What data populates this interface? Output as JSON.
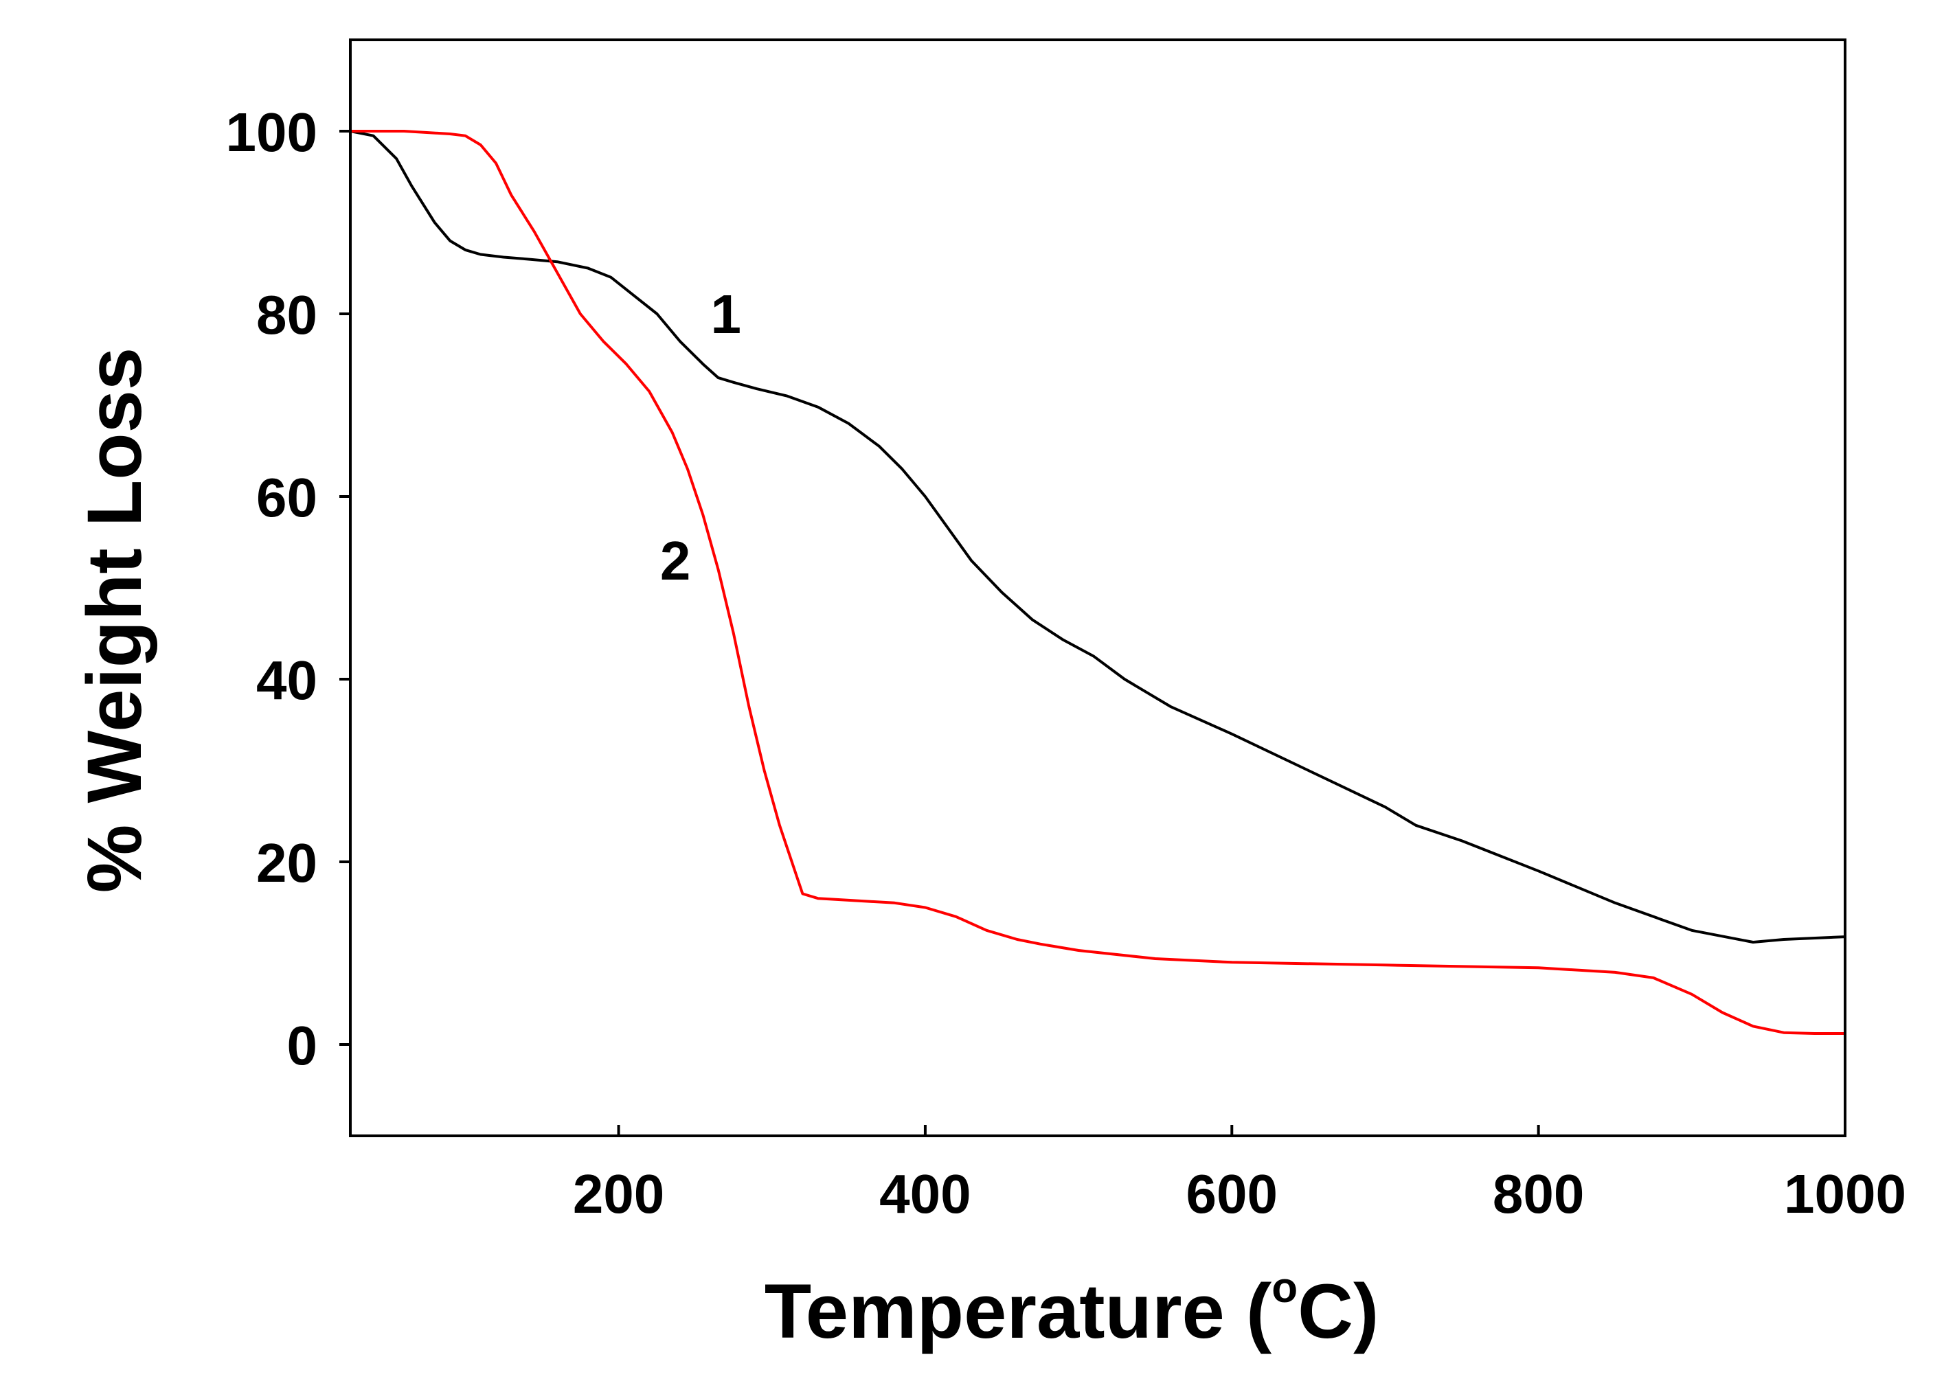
{
  "chart_data": {
    "type": "line",
    "title": "",
    "xlabel": "Temperature (",
    "xlabel_degree": "o",
    "xlabel_suffix": "C)",
    "ylabel": "% Weight Loss",
    "xlim": [
      25,
      1000
    ],
    "ylim": [
      -10,
      110
    ],
    "xticks": [
      200,
      400,
      600,
      800,
      1000
    ],
    "yticks": [
      0,
      20,
      40,
      60,
      80,
      100
    ],
    "grid": false,
    "legend": "none",
    "series": [
      {
        "name": "1",
        "color": "#000000",
        "x": [
          25,
          40,
          55,
          65,
          80,
          90,
          100,
          110,
          125,
          140,
          160,
          180,
          195,
          210,
          225,
          240,
          255,
          265,
          275,
          290,
          310,
          330,
          350,
          370,
          385,
          400,
          415,
          430,
          450,
          470,
          490,
          510,
          530,
          560,
          600,
          650,
          700,
          720,
          750,
          800,
          850,
          900,
          940,
          960,
          1000
        ],
        "y": [
          100,
          99.5,
          97,
          94,
          90,
          88,
          87,
          86.5,
          86.2,
          86,
          85.7,
          85,
          84,
          82,
          80,
          77,
          74.5,
          73,
          72.5,
          71.8,
          71,
          69.8,
          68,
          65.5,
          63,
          60,
          56.5,
          53,
          49.5,
          46.5,
          44.3,
          42.5,
          40,
          37,
          34,
          30,
          26,
          24,
          22.3,
          19,
          15.5,
          12.5,
          11.2,
          11.5,
          11.8
        ]
      },
      {
        "name": "2",
        "color": "#ff0000",
        "x": [
          25,
          60,
          90,
          100,
          110,
          120,
          130,
          145,
          160,
          175,
          190,
          205,
          220,
          235,
          245,
          255,
          265,
          275,
          285,
          295,
          305,
          315,
          320,
          330,
          350,
          380,
          400,
          420,
          440,
          460,
          475,
          500,
          550,
          600,
          700,
          800,
          850,
          875,
          900,
          920,
          940,
          960,
          980,
          1000
        ],
        "y": [
          100,
          100,
          99.7,
          99.5,
          98.5,
          96.5,
          93,
          89,
          84.5,
          80,
          77,
          74.5,
          71.5,
          67,
          63,
          58,
          52,
          45,
          37,
          30,
          24,
          19,
          16.5,
          16,
          15.8,
          15.5,
          15,
          14,
          12.5,
          11.5,
          11,
          10.3,
          9.4,
          9,
          8.7,
          8.4,
          7.9,
          7.3,
          5.5,
          3.5,
          2,
          1.3,
          1.2,
          1.2
        ]
      }
    ],
    "annotations": [
      {
        "text": "1",
        "x": 270,
        "y": 80
      },
      {
        "text": "2",
        "x": 237,
        "y": 53
      }
    ]
  }
}
